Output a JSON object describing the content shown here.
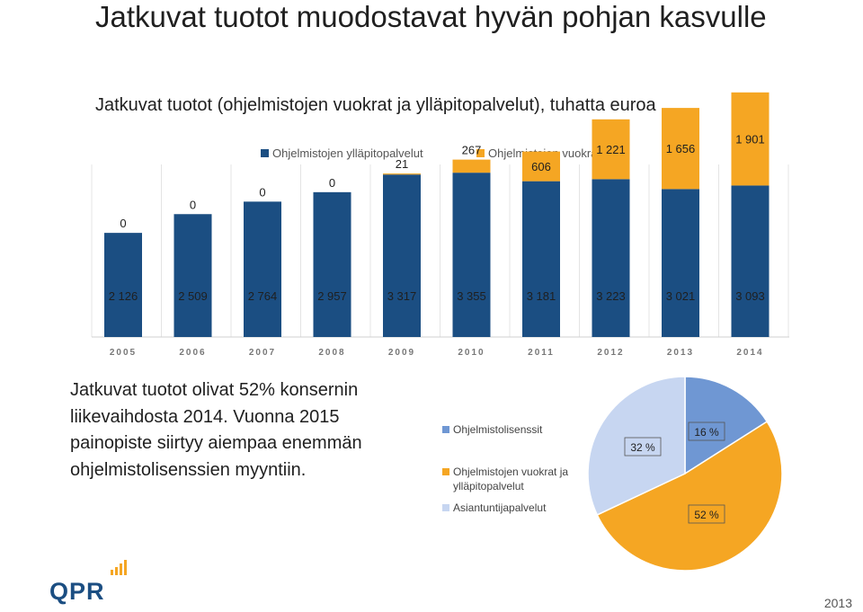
{
  "slide": {
    "title": "Jatkuvat tuotot muodostavat hyvän pohjan kasvulle",
    "subtitle": "Jatkuvat tuotot (ohjelmistojen vuokrat ja ylläpitopalvelut), tuhatta euroa",
    "paragraph": "Jatkuvat tuotot olivat 52% konsernin liikevaihdosta 2014. Vuonna 2015 painopiste siirtyy aiempaa enemmän ohjelmistolisenssien myyntiin.",
    "logo_text": "QPR",
    "footer_year": "2013"
  },
  "colors": {
    "maintenance": "#1b4e82",
    "rentals": "#f5a623",
    "licenses": "#6f97d3",
    "expert": "#c7d6f1"
  },
  "chart_data": [
    {
      "type": "bar",
      "stacked": true,
      "title": "Jatkuvat tuotot (ohjelmistojen vuokrat ja ylläpitopalvelut), tuhatta euroa",
      "categories": [
        "2005",
        "2006",
        "2007",
        "2008",
        "2009",
        "2010",
        "2011",
        "2012",
        "2013",
        "2014"
      ],
      "series": [
        {
          "name": "Ohjelmistojen ylläpitopalvelut",
          "values": [
            2126,
            2509,
            2764,
            2957,
            3317,
            3355,
            3181,
            3223,
            3021,
            3093
          ],
          "labels": [
            "2 126",
            "2 509",
            "2 764",
            "2 957",
            "3 317",
            "3 355",
            "3 181",
            "3 223",
            "3 021",
            "3 093"
          ]
        },
        {
          "name": "Ohjelmistojen vuokrat",
          "values": [
            0,
            0,
            0,
            0,
            21,
            267,
            606,
            1221,
            1656,
            1901
          ],
          "labels": [
            "0",
            "0",
            "0",
            "0",
            "21",
            "267",
            "606",
            "1 221",
            "1 656",
            "1 901"
          ]
        }
      ],
      "legend": "top",
      "ylim": [
        0,
        5000
      ],
      "grid": "vertical"
    },
    {
      "type": "pie",
      "slices": [
        {
          "name": "Ohjelmistolisenssit",
          "value": 16,
          "label": "16 %"
        },
        {
          "name": "Ohjelmistojen vuokrat ja ylläpitopalvelut",
          "value": 52,
          "label": "52 %"
        },
        {
          "name": "Asiantuntijapalvelut",
          "value": 32,
          "label": "32 %"
        }
      ],
      "legend": "left"
    }
  ]
}
